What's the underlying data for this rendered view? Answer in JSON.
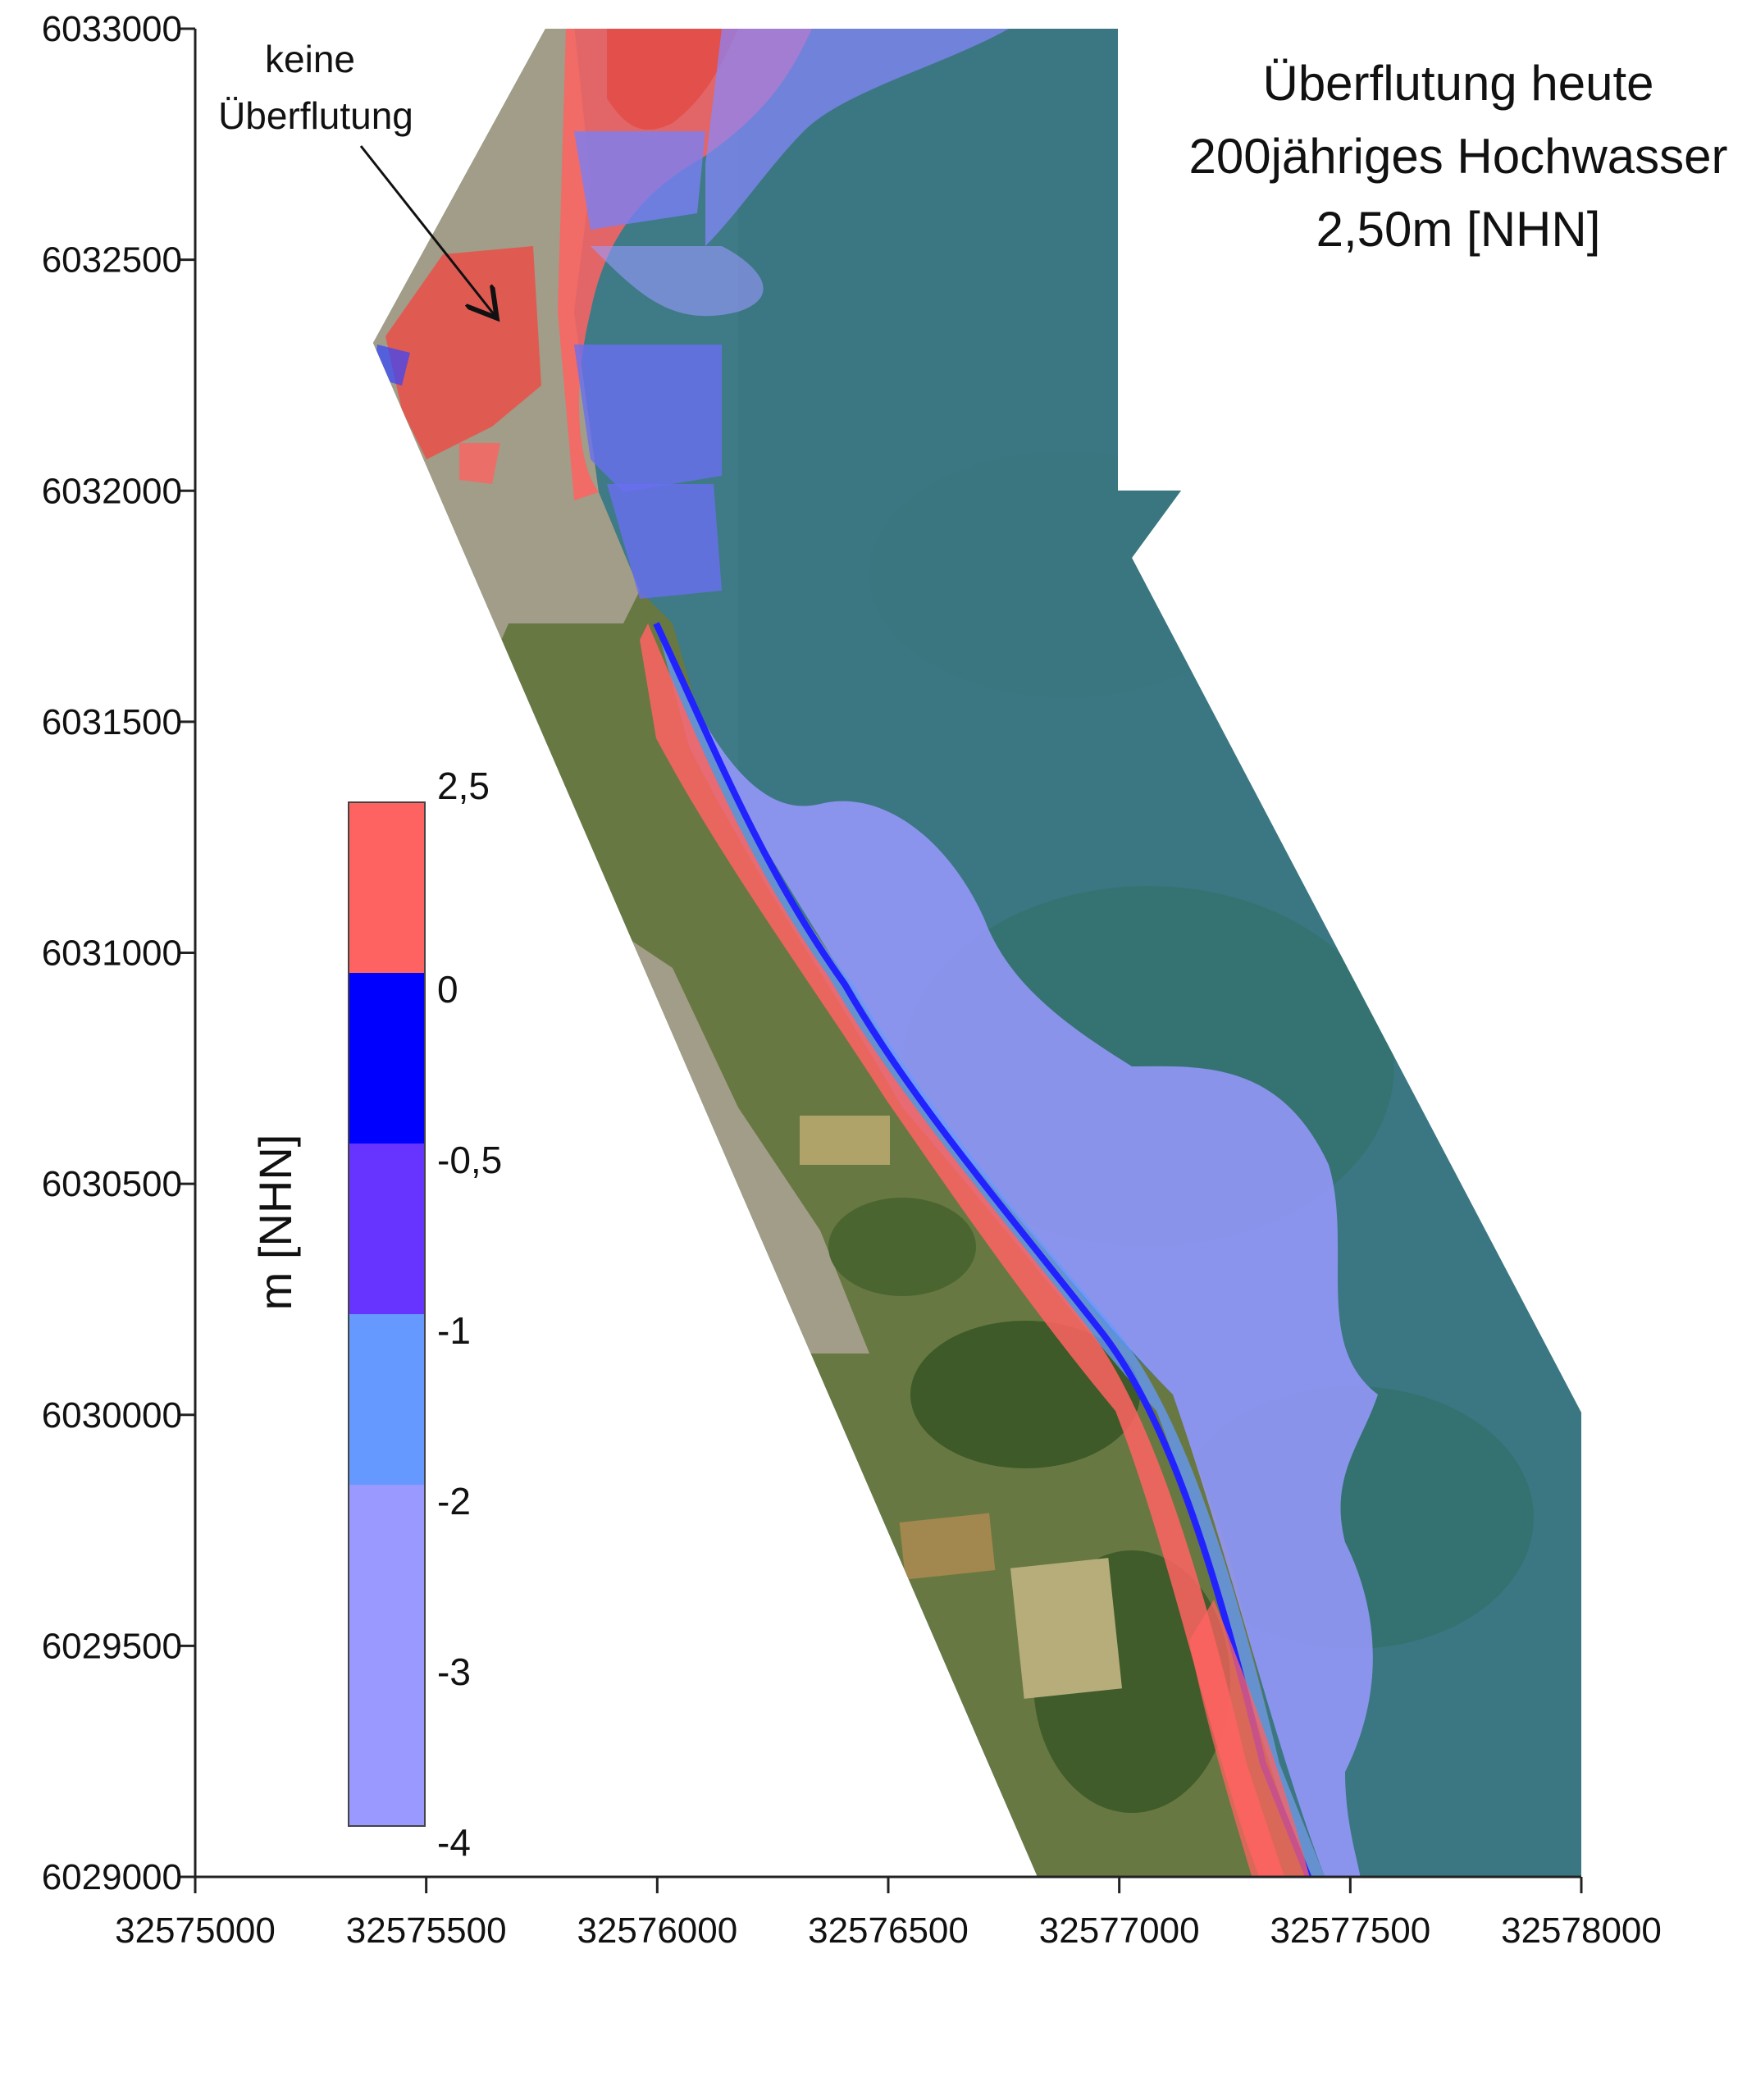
{
  "map": {
    "title": {
      "line1": "Überflutung heute",
      "line2": "200jähriges Hochwasser",
      "line3": "2,50m [NHN]"
    },
    "annotation": {
      "line1": "keine",
      "line2": "Überflutung"
    },
    "x_axis": {
      "ticks": [
        "32575000",
        "32575500",
        "32576000",
        "32576500",
        "32577000",
        "32577500",
        "32578000"
      ]
    },
    "y_axis": {
      "ticks": [
        "6033000",
        "6032500",
        "6032000",
        "6031500",
        "6031000",
        "6030500",
        "6030000",
        "6029500",
        "6029000"
      ]
    },
    "legend": {
      "unit": "m [NHN]",
      "labels": [
        "2,5",
        "0",
        "-0,5",
        "-1",
        "-2",
        "-3",
        "-4"
      ],
      "classes": [
        {
          "from": "2,5",
          "to": "0",
          "color": "#ff6361"
        },
        {
          "from": "0",
          "to": "-0,5",
          "color": "#0000ff"
        },
        {
          "from": "-0,5",
          "to": "-1",
          "color": "#6633ff"
        },
        {
          "from": "-1",
          "to": "-2",
          "color": "#6699ff"
        },
        {
          "from": "-2",
          "to": "-4",
          "color": "#9999ff"
        }
      ]
    },
    "colors": {
      "sea": "#3f7c86",
      "land": "#6b7a45",
      "urban": "#a89f8c",
      "flood_red": "#ff6361",
      "shallow_blue": "#9999ff"
    }
  }
}
